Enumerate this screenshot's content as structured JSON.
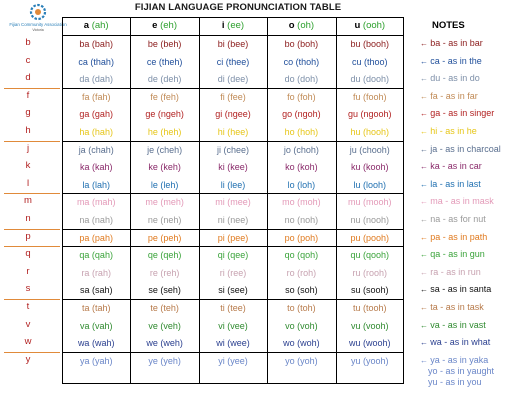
{
  "header": {
    "title": "FIJIAN LANGUAGE PRONUNCIATION TABLE",
    "notes_label": "NOTES",
    "org_name": "Fijian Community Association",
    "org_sub": "Victoria"
  },
  "vowels": [
    {
      "letter": "a",
      "pron": "(ah)"
    },
    {
      "letter": "e",
      "pron": "(eh)"
    },
    {
      "letter": "i",
      "pron": "(ee)"
    },
    {
      "letter": "o",
      "pron": "(oh)"
    },
    {
      "letter": "u",
      "pron": "(ooh)"
    }
  ],
  "rows": [
    {
      "c": "b",
      "cells": [
        "ba (bah)",
        "be (beh)",
        "bi (bee)",
        "bo (boh)",
        "bu (booh)"
      ],
      "note": "ba - as in bar",
      "color": "#8b1c1c"
    },
    {
      "c": "c",
      "cells": [
        "ca (thah)",
        "ce (theh)",
        "ci (thee)",
        "co (thoh)",
        "cu (thoo)"
      ],
      "note": "ca - as in the",
      "color": "#1f4e9a"
    },
    {
      "c": "d",
      "cells": [
        "da (dah)",
        "de (deh)",
        "di (dee)",
        "do (doh)",
        "du (dooh)"
      ],
      "note": "du - as in do",
      "color": "#7d8fa8"
    },
    {
      "c": "f",
      "cells": [
        "fa (fah)",
        "fe (feh)",
        "fi (fee)",
        "fo (foh)",
        "fu (fooh)"
      ],
      "note": "fa - as in far",
      "color": "#c08a55"
    },
    {
      "c": "g",
      "cells": [
        "ga (gah)",
        "ge (ngeh)",
        "gi (ngee)",
        "go (ngoh)",
        "gu (ngooh)"
      ],
      "note": "ga - as in singer",
      "color": "#b22222"
    },
    {
      "c": "h",
      "cells": [
        "ha (hah)",
        "he (heh)",
        "hi (hee)",
        "ho (hoh)",
        "hu (hooh)"
      ],
      "note": "hi - as in he",
      "color": "#e6c619"
    },
    {
      "c": "j",
      "cells": [
        "ja (chah)",
        "je (cheh)",
        "ji (chee)",
        "jo (choh)",
        "ju (chooh)"
      ],
      "note": "ja - as in charcoal",
      "color": "#5a6f8f"
    },
    {
      "c": "k",
      "cells": [
        "ka (kah)",
        "ke (keh)",
        "ki (kee)",
        "ko (koh)",
        "ku (kooh)"
      ],
      "note": "ka - as in car",
      "color": "#8a2a6a"
    },
    {
      "c": "l",
      "cells": [
        "la (lah)",
        "le (leh)",
        "li (lee)",
        "lo (loh)",
        "lu (looh)"
      ],
      "note": "la - as in last",
      "color": "#1f6fb0"
    },
    {
      "c": "m",
      "cells": [
        "ma (mah)",
        "me (meh)",
        "mi (mee)",
        "mo (moh)",
        "mu (mooh)"
      ],
      "note": "ma - as in mask",
      "color": "#e39ab8"
    },
    {
      "c": "n",
      "cells": [
        "na (nah)",
        "ne (neh)",
        "ni (nee)",
        "no (noh)",
        "nu (nooh)"
      ],
      "note": "na - as for nut",
      "color": "#9a9a9a"
    },
    {
      "c": "p",
      "cells": [
        "pa (pah)",
        "pe (peh)",
        "pi (pee)",
        "po (poh)",
        "pu (pooh)"
      ],
      "note": "pa - as in path",
      "color": "#e07a1f"
    },
    {
      "c": "q",
      "cells": [
        "qa (qah)",
        "qe (qeh)",
        "qi (qee)",
        "qo (qoh)",
        "qu (qooh)"
      ],
      "note": "qa - as in gun",
      "color": "#3aa33a"
    },
    {
      "c": "r",
      "cells": [
        "ra (rah)",
        "re (reh)",
        "ri (ree)",
        "ro (roh)",
        "ru (rooh)"
      ],
      "note": "ra - as in run",
      "color": "#c7a2b0"
    },
    {
      "c": "s",
      "cells": [
        "sa (sah)",
        "se (seh)",
        "si (see)",
        "so (soh)",
        "su (sooh)"
      ],
      "note": "sa - as in santa",
      "color": "#111111"
    },
    {
      "c": "t",
      "cells": [
        "ta (tah)",
        "te (teh)",
        "ti (tee)",
        "to (toh)",
        "tu (tooh)"
      ],
      "note": "ta - as in task",
      "color": "#b77a4a"
    },
    {
      "c": "v",
      "cells": [
        "va (vah)",
        "ve (veh)",
        "vi (vee)",
        "vo (voh)",
        "vu (vooh)"
      ],
      "note": "va - as in vast",
      "color": "#2f8a2f"
    },
    {
      "c": "w",
      "cells": [
        "wa (wah)",
        "we (weh)",
        "wi (wee)",
        "wo (woh)",
        "wu (wooh)"
      ],
      "note": "wa - as in what",
      "color": "#2a3f8f"
    },
    {
      "c": "y",
      "cells": [
        "ya (yah)",
        "ye (yeh)",
        "yi (yee)",
        "yo (yoh)",
        "yu (yooh)"
      ],
      "note": "ya - as in yaka",
      "color": "#6a86c8"
    }
  ],
  "extra_notes": [
    {
      "text": "yo - as in yaught",
      "color": "#6a86c8"
    },
    {
      "text": "yu - as in you",
      "color": "#6a86c8"
    }
  ],
  "colors": {
    "accent_bracket": "#e08a3a",
    "vowel_pron": "#2da02d"
  }
}
